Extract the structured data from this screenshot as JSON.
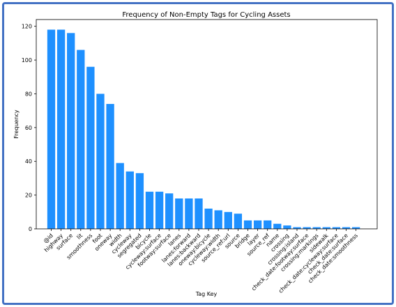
{
  "chart_data": {
    "type": "bar",
    "title": "Frequency of Non-Empty Tags for Cycling Assets",
    "xlabel": "Tag Key",
    "ylabel": "Frequency",
    "ylim": [
      0,
      124
    ],
    "yticks": [
      0,
      20,
      40,
      60,
      80,
      100,
      120
    ],
    "bar_color": "#1e90ff",
    "grid": false,
    "categories": [
      "@id",
      "highway",
      "surface",
      "lit",
      "smoothness",
      "foot",
      "oneway",
      "width",
      "cycleway",
      "segregated",
      "bicycle",
      "cycleway:surface",
      "footway:surface",
      "lanes",
      "lanes:forward",
      "lanes:backward",
      "oneway:bicycle",
      "cycleway:width",
      "source_ref:url",
      "source",
      "bridge",
      "layer",
      "source_ref",
      "name",
      "crossing",
      "crossing:island",
      "check_date:footway:surface",
      "crossing:markings",
      "sidewalk",
      "check_date:cycleway:surface",
      "check_date:surface",
      "check_date:smoothness"
    ],
    "values": [
      118,
      118,
      116,
      106,
      96,
      80,
      74,
      39,
      34,
      33,
      22,
      22,
      21,
      18,
      18,
      18,
      12,
      11,
      10,
      9,
      5,
      5,
      5,
      3,
      2,
      1,
      1,
      1,
      1,
      1,
      1,
      1
    ]
  }
}
